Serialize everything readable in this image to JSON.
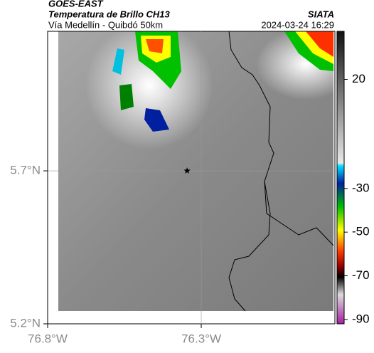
{
  "header": {
    "title": "GOES-EAST",
    "subtitle": "Temperatura de Brillo CH13",
    "source": "SIATA",
    "route": "Vía Medellín - Quibdó 50km",
    "datetime": "2024-03-24 16:29"
  },
  "map": {
    "xlim": [
      -76.8,
      -75.865
    ],
    "ylim": [
      5.2,
      6.156
    ],
    "xticks": [
      {
        "value": -76.8,
        "label": "76.8°W"
      },
      {
        "value": -76.3,
        "label": "76.3°W"
      }
    ],
    "yticks": [
      {
        "value": 5.2,
        "label": "5.2°N"
      },
      {
        "value": 5.7,
        "label": "5.7°N"
      }
    ],
    "grid": true,
    "marker": {
      "lon": -76.346,
      "lat": 5.7
    }
  },
  "colorbar": {
    "clim": [
      -92,
      42
    ],
    "ticks": [
      20,
      -30,
      -50,
      -70,
      -90
    ]
  }
}
